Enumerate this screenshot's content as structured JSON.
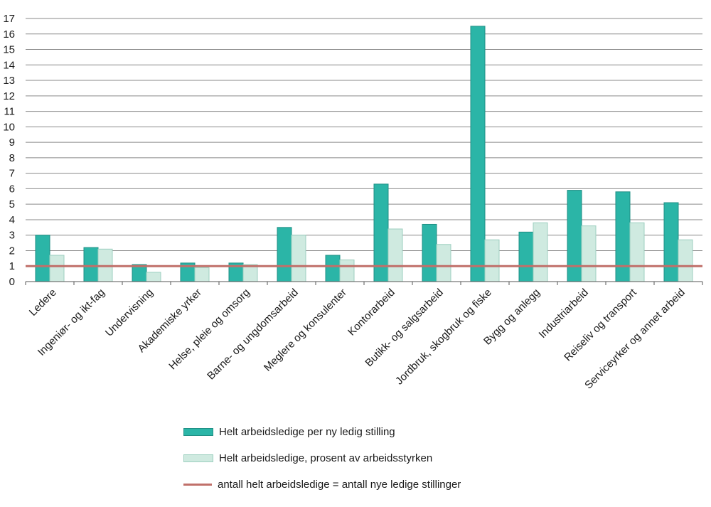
{
  "chart_data": {
    "type": "bar",
    "categories": [
      "Ledere",
      "Ingeniør- og ikt-fag",
      "Undervisning",
      "Akademiske yrker",
      "Helse, pleie og omsorg",
      "Barne- og ungdomsarbeid",
      "Meglere og konsulenter",
      "Kontorarbeid",
      "Butikk- og salgsarbeid",
      "Jordbruk, skogbruk og fiske",
      "Bygg og anlegg",
      "Industriarbeid",
      "Reiseliv og transport",
      "Serviceyrker og annet arbeid"
    ],
    "series": [
      {
        "name": "Helt arbeidsledige per ny ledig stilling",
        "color": "#2bb5a7",
        "values": [
          3.0,
          2.2,
          1.1,
          1.2,
          1.2,
          3.5,
          1.7,
          6.3,
          3.7,
          16.5,
          3.2,
          5.9,
          5.8,
          5.1
        ]
      },
      {
        "name": "Helt arbeidsledige, prosent av arbeidsstyrken",
        "color": "#cfeae0",
        "values": [
          1.7,
          2.1,
          0.6,
          0.9,
          1.1,
          3.0,
          1.4,
          3.4,
          2.4,
          2.7,
          3.8,
          3.6,
          3.8,
          2.7
        ]
      }
    ],
    "reference_line": {
      "name": "antall helt arbeidsledige = antall nye ledige stillinger",
      "value": 1,
      "color": "#c0706a"
    },
    "ylim": [
      0,
      17
    ],
    "yticks": [
      0,
      1,
      2,
      3,
      4,
      5,
      6,
      7,
      8,
      9,
      10,
      11,
      12,
      13,
      14,
      15,
      16,
      17
    ],
    "grid": true,
    "legend_position": "bottom-center",
    "title": "",
    "xlabel": "",
    "ylabel": ""
  },
  "legend": {
    "item1": "Helt arbeidsledige per ny ledig stilling",
    "item2": "Helt arbeidsledige, prosent av arbeidsstyrken",
    "item3": "antall helt arbeidsledige = antall nye ledige stillinger"
  }
}
